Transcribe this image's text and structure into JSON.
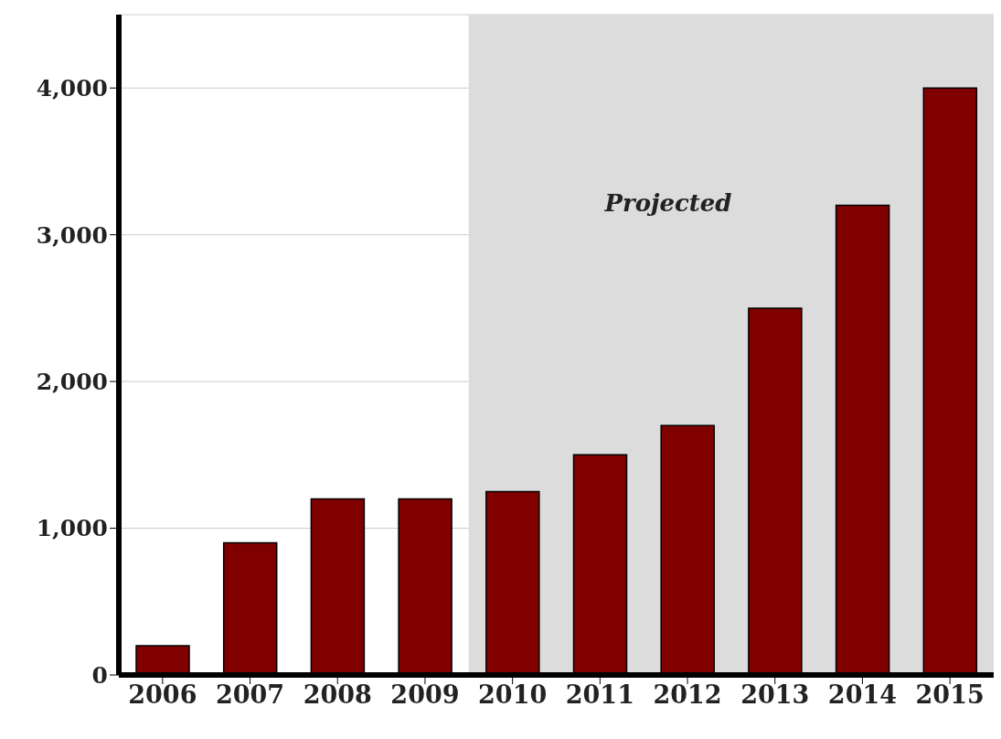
{
  "chart_data": {
    "type": "bar",
    "categories": [
      "2006",
      "2007",
      "2008",
      "2009",
      "2010",
      "2011",
      "2012",
      "2013",
      "2014",
      "2015"
    ],
    "values": [
      200,
      900,
      1200,
      1200,
      1250,
      1500,
      1700,
      2500,
      3200,
      4000
    ],
    "color": "#800000",
    "ylim": [
      0,
      4500
    ],
    "yticks": [
      0,
      {
        "value": 1000,
        "label": "1,000"
      },
      {
        "value": 2000,
        "label": "2,000"
      },
      {
        "value": 3000,
        "label": "3,000"
      },
      {
        "value": 4000,
        "label": "4,000"
      }
    ],
    "grid": "y",
    "bands": [
      {
        "axis": "x",
        "from": "2010",
        "to": "2015",
        "label": "Projected",
        "color": "#dcdcdc"
      }
    ]
  }
}
